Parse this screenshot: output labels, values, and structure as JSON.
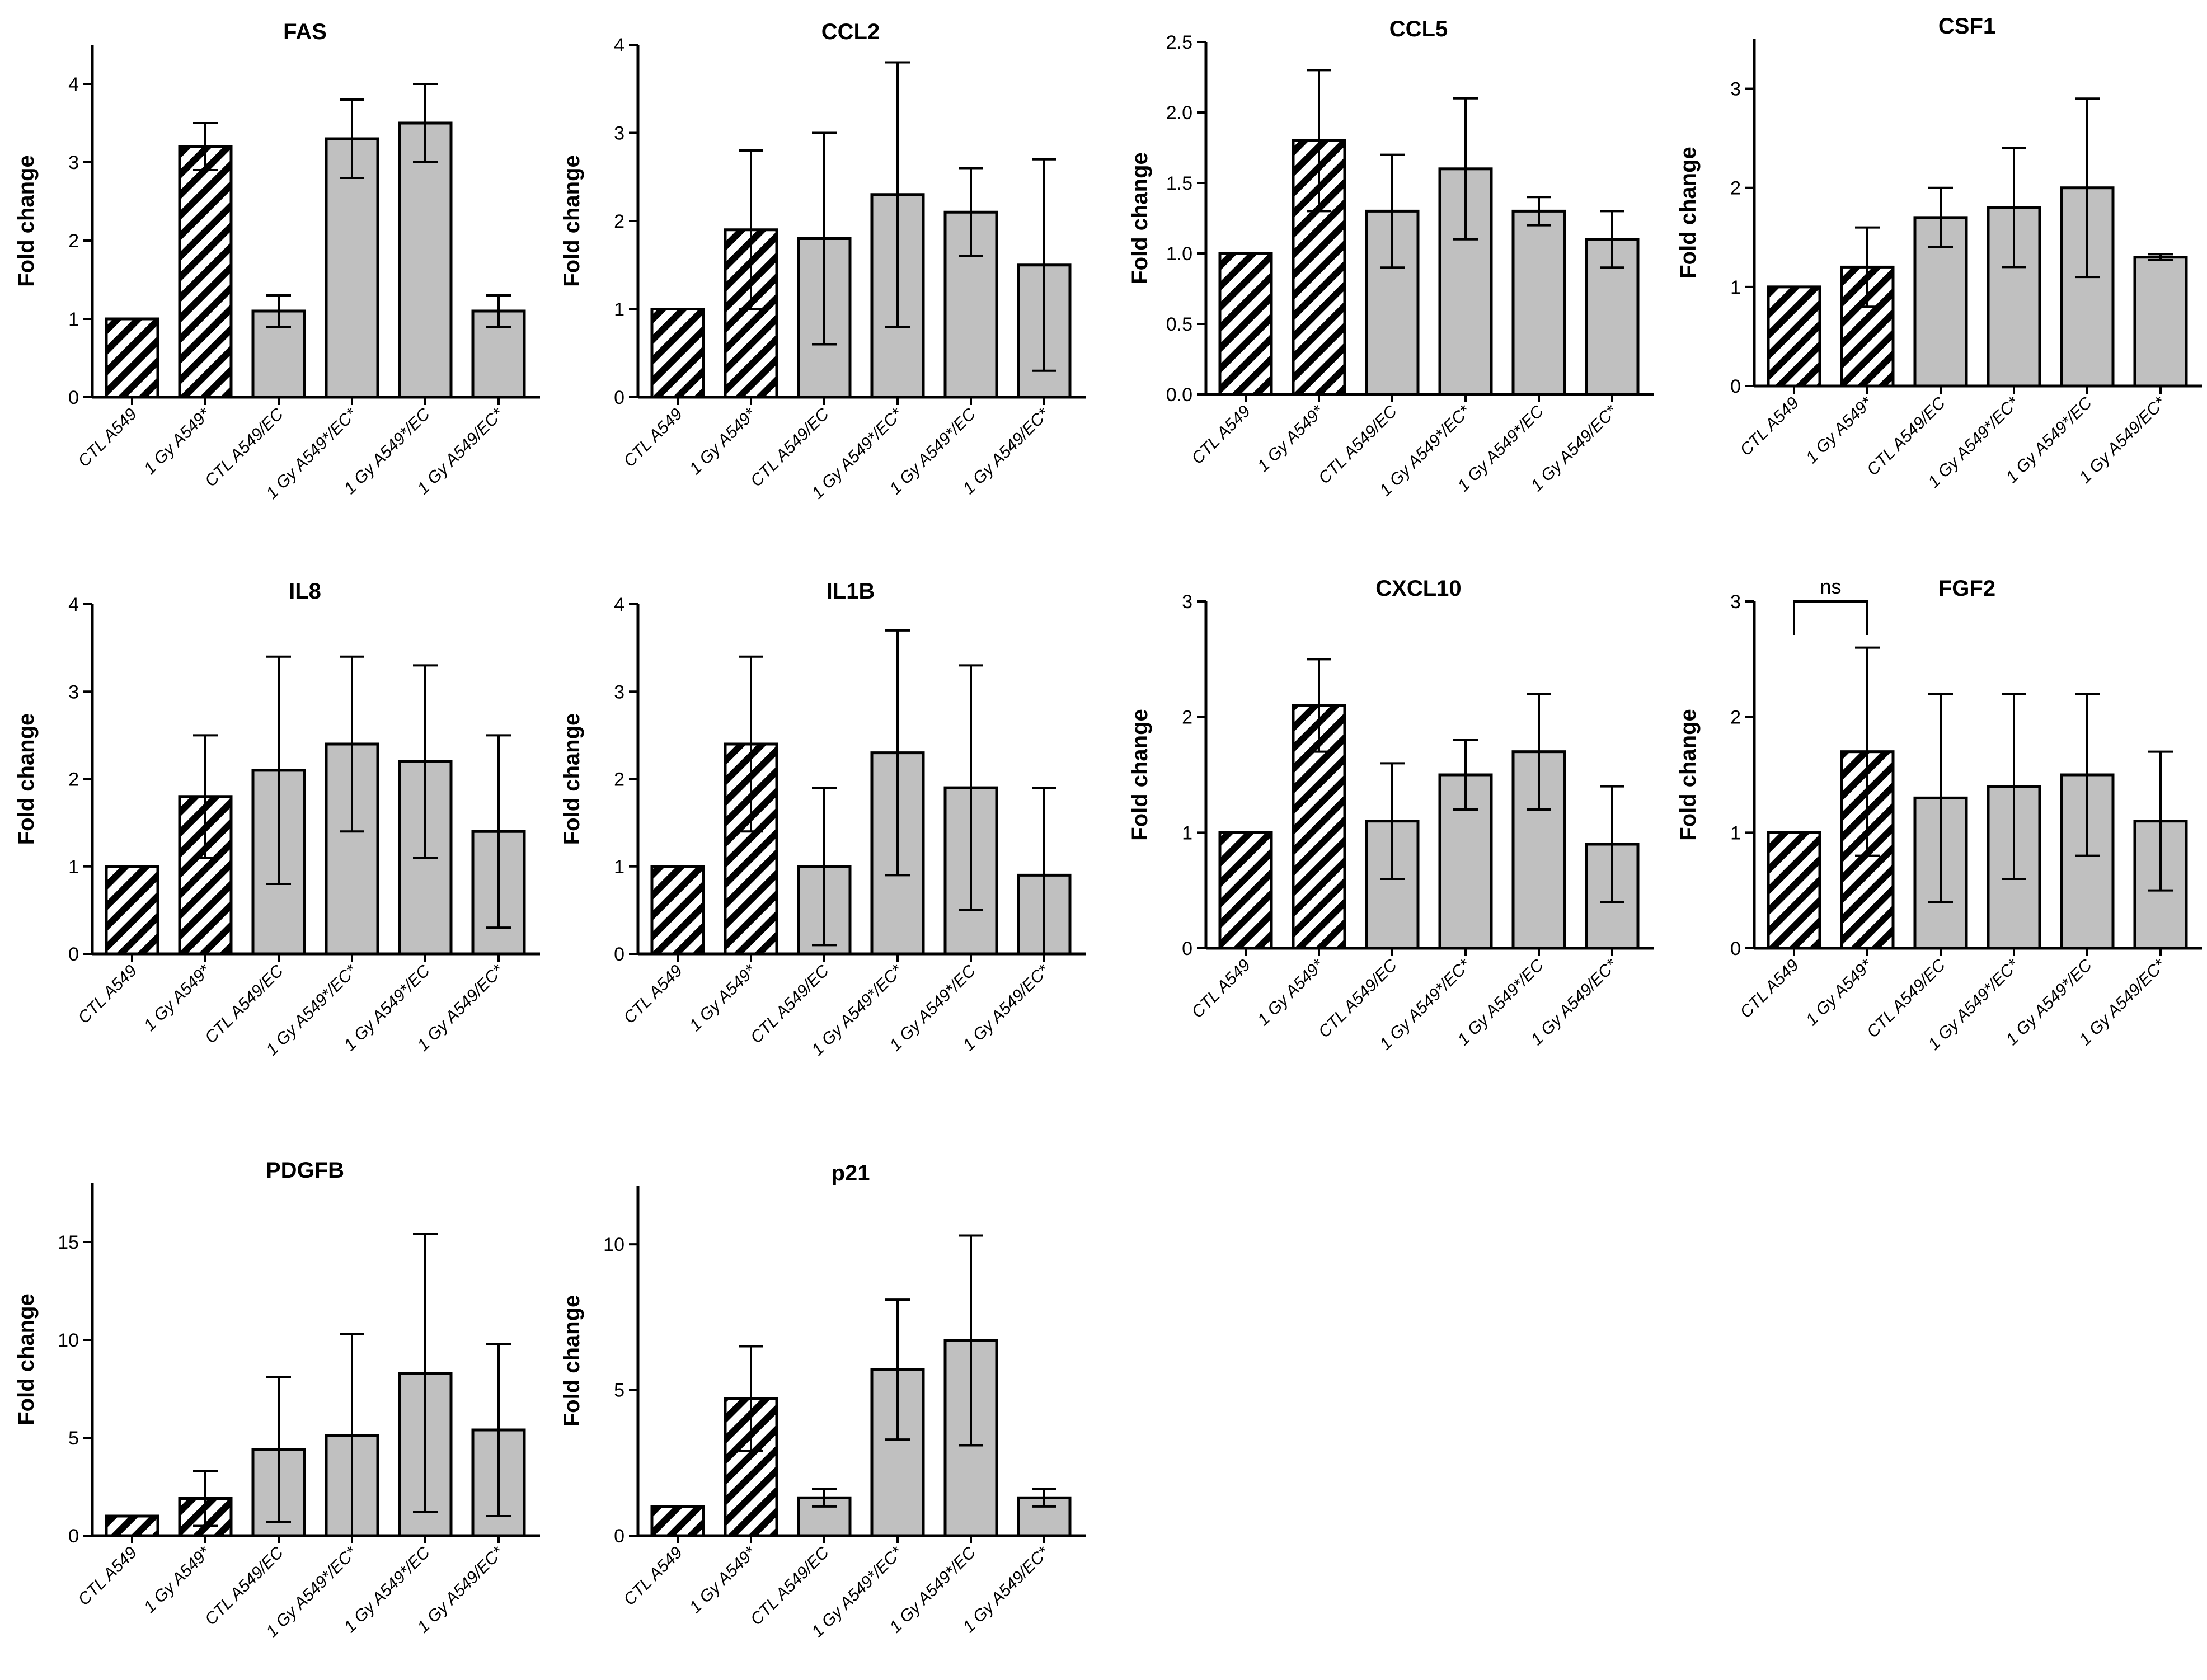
{
  "colors": {
    "bar_fill": "#c0c0c0",
    "hatch": "#000000",
    "axis": "#000000",
    "background": "#ffffff"
  },
  "chart_data": [
    {
      "type": "bar",
      "title": "FAS",
      "ylabel": "Fold change",
      "categories": [
        "CTL A549",
        "1 Gy A549*",
        "CTL A549/EC",
        "1 Gy A549*/EC*",
        "1 Gy A549*/EC",
        "1 Gy A549/EC*"
      ],
      "values": [
        1.0,
        3.2,
        1.1,
        3.3,
        3.5,
        1.1
      ],
      "errors": [
        0,
        0.3,
        0.2,
        0.5,
        0.5,
        0.2
      ],
      "hatched": [
        true,
        true,
        false,
        false,
        false,
        false
      ],
      "ylim": [
        0,
        4.5
      ],
      "yticks": [
        "0",
        "1",
        "2",
        "3",
        "4"
      ]
    },
    {
      "type": "bar",
      "title": "CCL2",
      "ylabel": "Fold change",
      "categories": [
        "CTL A549",
        "1 Gy A549*",
        "CTL A549/EC",
        "1 Gy A549*/EC*",
        "1 Gy A549*/EC",
        "1 Gy A549/EC*"
      ],
      "values": [
        1.0,
        1.9,
        1.8,
        2.3,
        2.1,
        1.5
      ],
      "errors": [
        0,
        0.9,
        1.2,
        1.5,
        0.5,
        1.2
      ],
      "hatched": [
        true,
        true,
        false,
        false,
        false,
        false
      ],
      "ylim": [
        0,
        4
      ],
      "yticks": [
        "0",
        "1",
        "2",
        "3",
        "4"
      ]
    },
    {
      "type": "bar",
      "title": "CCL5",
      "ylabel": "Fold change",
      "categories": [
        "CTL A549",
        "1 Gy A549*",
        "CTL A549/EC",
        "1 Gy A549*/EC*",
        "1 Gy A549*/EC",
        "1 Gy A549/EC*"
      ],
      "values": [
        1.0,
        1.8,
        1.3,
        1.6,
        1.3,
        1.1
      ],
      "errors": [
        0,
        0.5,
        0.4,
        0.5,
        0.1,
        0.2
      ],
      "hatched": [
        true,
        true,
        false,
        false,
        false,
        false
      ],
      "ylim": [
        0,
        2.5
      ],
      "yticks": [
        "0.0",
        "0.5",
        "1.0",
        "1.5",
        "2.0",
        "2.5"
      ]
    },
    {
      "type": "bar",
      "title": "CSF1",
      "ylabel": "Fold change",
      "categories": [
        "CTL A549",
        "1 Gy A549*",
        "CTL A549/EC",
        "1 Gy A549*/EC*",
        "1 Gy A549*/EC",
        "1 Gy A549/EC*"
      ],
      "values": [
        1.0,
        1.2,
        1.7,
        1.8,
        2.0,
        1.3
      ],
      "errors": [
        0,
        0.4,
        0.3,
        0.6,
        0.9,
        0.03
      ],
      "hatched": [
        true,
        true,
        false,
        false,
        false,
        false
      ],
      "ylim": [
        0,
        3.5
      ],
      "yticks": [
        "0",
        "1",
        "2",
        "3"
      ]
    },
    {
      "type": "bar",
      "title": "IL8",
      "ylabel": "Fold change",
      "categories": [
        "CTL A549",
        "1 Gy A549*",
        "CTL A549/EC",
        "1 Gy A549*/EC*",
        "1 Gy A549*/EC",
        "1 Gy A549/EC*"
      ],
      "values": [
        1.0,
        1.8,
        2.1,
        2.4,
        2.2,
        1.4
      ],
      "errors": [
        0,
        0.7,
        1.3,
        1.0,
        1.1,
        1.1
      ],
      "hatched": [
        true,
        true,
        false,
        false,
        false,
        false
      ],
      "ylim": [
        0,
        4
      ],
      "yticks": [
        "0",
        "1",
        "2",
        "3",
        "4"
      ]
    },
    {
      "type": "bar",
      "title": "IL1B",
      "ylabel": "Fold change",
      "categories": [
        "CTL A549",
        "1 Gy A549*",
        "CTL A549/EC",
        "1 Gy A549*/EC*",
        "1 Gy A549*/EC",
        "1 Gy A549/EC*"
      ],
      "values": [
        1.0,
        2.4,
        1.0,
        2.3,
        1.9,
        0.9
      ],
      "errors": [
        0,
        1.0,
        0.9,
        1.4,
        1.4,
        1.0
      ],
      "hatched": [
        true,
        true,
        false,
        false,
        false,
        false
      ],
      "ylim": [
        0,
        4
      ],
      "yticks": [
        "0",
        "1",
        "2",
        "3",
        "4"
      ]
    },
    {
      "type": "bar",
      "title": "CXCL10",
      "ylabel": "Fold change",
      "categories": [
        "CTL A549",
        "1 Gy A549*",
        "CTL A549/EC",
        "1 Gy A549*/EC*",
        "1 Gy A549*/EC",
        "1 Gy A549/EC*"
      ],
      "values": [
        1.0,
        2.1,
        1.1,
        1.5,
        1.7,
        0.9
      ],
      "errors": [
        0,
        0.4,
        0.5,
        0.3,
        0.5,
        0.5
      ],
      "hatched": [
        true,
        true,
        false,
        false,
        false,
        false
      ],
      "ylim": [
        0,
        3
      ],
      "yticks": [
        "0",
        "1",
        "2",
        "3"
      ]
    },
    {
      "type": "bar",
      "title": "FGF2",
      "ylabel": "Fold change",
      "categories": [
        "CTL A549",
        "1 Gy A549*",
        "CTL A549/EC",
        "1 Gy A549*/EC*",
        "1 Gy A549*/EC",
        "1 Gy A549/EC*"
      ],
      "values": [
        1.0,
        1.7,
        1.3,
        1.4,
        1.5,
        1.1
      ],
      "errors": [
        0,
        0.9,
        0.9,
        0.8,
        0.7,
        0.6
      ],
      "hatched": [
        true,
        true,
        false,
        false,
        false,
        false
      ],
      "ylim": [
        0,
        3
      ],
      "yticks": [
        "0",
        "1",
        "2",
        "3"
      ],
      "annotation": {
        "text": "ns",
        "from": 0,
        "to": 1,
        "y": 3.0
      }
    },
    {
      "type": "bar",
      "title": "PDGFB",
      "ylabel": "Fold change",
      "categories": [
        "CTL A549",
        "1 Gy A549*",
        "CTL A549/EC",
        "1 Gy A549*/EC*",
        "1 Gy A549*/EC",
        "1 Gy A549/EC*"
      ],
      "values": [
        1.0,
        1.9,
        4.4,
        5.1,
        8.3,
        5.4
      ],
      "errors": [
        0,
        1.4,
        3.7,
        5.2,
        7.1,
        4.4
      ],
      "hatched": [
        true,
        true,
        false,
        false,
        false,
        false
      ],
      "ylim": [
        0,
        18
      ],
      "yticks": [
        "0",
        "5",
        "10",
        "15"
      ]
    },
    {
      "type": "bar",
      "title": "p21",
      "ylabel": "Fold change",
      "categories": [
        "CTL A549",
        "1 Gy A549*",
        "CTL A549/EC",
        "1 Gy A549*/EC*",
        "1 Gy A549*/EC",
        "1 Gy A549/EC*"
      ],
      "values": [
        1.0,
        4.7,
        1.3,
        5.7,
        6.7,
        1.3
      ],
      "errors": [
        0,
        1.8,
        0.3,
        2.4,
        3.6,
        0.3
      ],
      "hatched": [
        true,
        true,
        false,
        false,
        false,
        false
      ],
      "ylim": [
        0,
        12
      ],
      "yticks": [
        "0",
        "5",
        "10"
      ]
    }
  ]
}
